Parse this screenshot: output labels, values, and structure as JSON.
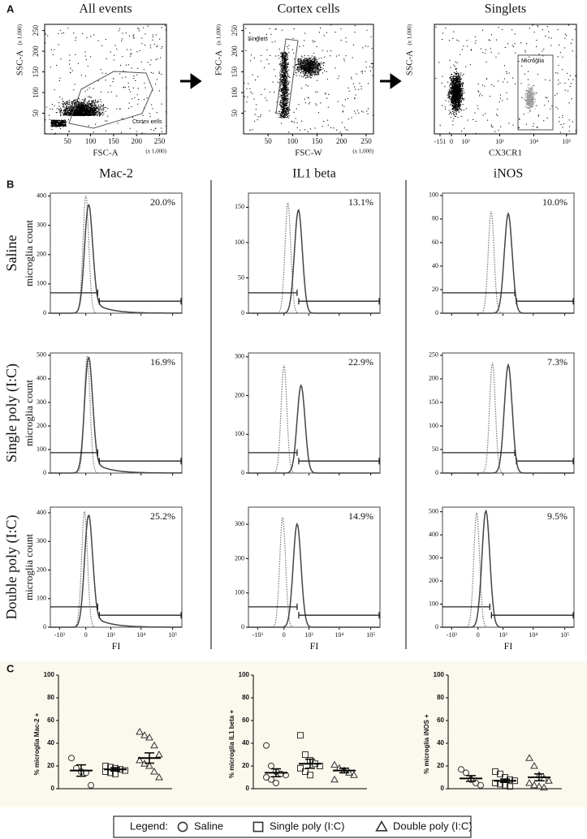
{
  "panel_labels": {
    "a": "A",
    "b": "B",
    "c": "C"
  },
  "gating": [
    {
      "title": "All events",
      "xlabel": "FSC-A",
      "ylabel": "SSC-A",
      "x_unit": "(x 1,000)",
      "y_unit": "(x 1,000)",
      "gate": "Cortex cells",
      "xlim": [
        0,
        265
      ],
      "ylim": [
        0,
        265
      ],
      "xticks": [
        50,
        100,
        150,
        200,
        250
      ],
      "yticks": [
        50,
        100,
        150,
        200,
        250
      ]
    },
    {
      "title": "Cortex cells",
      "xlabel": "FSC-W",
      "ylabel": "FSC-A",
      "x_unit": "(x 1,000)",
      "y_unit": "(x 1,000)",
      "gate": "Singlets",
      "xlim": [
        0,
        265
      ],
      "ylim": [
        0,
        265
      ],
      "xticks": [
        50,
        100,
        150,
        200,
        250
      ],
      "yticks": [
        50,
        100,
        150,
        200,
        250
      ]
    },
    {
      "title": "Singlets",
      "xlabel": "CX3CR1",
      "ylabel": "SSC-A",
      "y_unit": "(x 1,000)",
      "gate": "Microglia",
      "xticks": [
        "-151",
        "0",
        "10²",
        "10³",
        "10⁴",
        "10⁵"
      ]
    }
  ],
  "histograms": {
    "columns": [
      "Mac-2",
      "IL1 beta",
      "iNOS"
    ],
    "rows": [
      "Saline",
      "Single poly (I:C)",
      "Double poly (I:C)"
    ],
    "ylabel": "microglia count",
    "xlabel": "FI",
    "xticks": [
      "-10³",
      "0",
      "10³",
      "10⁴",
      "10⁵"
    ],
    "panels": [
      [
        {
          "percent": "20.0%",
          "ylim": [
            0,
            410
          ],
          "yticks": [
            0,
            100,
            200,
            300,
            400
          ]
        },
        {
          "percent": "13.1%",
          "ylim": [
            0,
            170
          ],
          "yticks": [
            0,
            50,
            100,
            150
          ]
        },
        {
          "percent": "10.0%",
          "ylim": [
            0,
            102
          ],
          "yticks": [
            0,
            20,
            40,
            60,
            80,
            100
          ]
        }
      ],
      [
        {
          "percent": "16.9%",
          "ylim": [
            0,
            510
          ],
          "yticks": [
            0,
            100,
            200,
            300,
            400,
            500
          ]
        },
        {
          "percent": "22.9%",
          "ylim": [
            0,
            310
          ],
          "yticks": [
            0,
            100,
            200,
            300
          ]
        },
        {
          "percent": "7.3%",
          "ylim": [
            0,
            255
          ],
          "yticks": [
            0,
            50,
            100,
            150,
            200,
            250
          ]
        }
      ],
      [
        {
          "percent": "25.2%",
          "ylim": [
            0,
            420
          ],
          "yticks": [
            0,
            100,
            200,
            300,
            400
          ]
        },
        {
          "percent": "14.9%",
          "ylim": [
            0,
            350
          ],
          "yticks": [
            0,
            100,
            200,
            300
          ]
        },
        {
          "percent": "9.5%",
          "ylim": [
            0,
            520
          ],
          "yticks": [
            0,
            100,
            200,
            300,
            400,
            500
          ]
        }
      ]
    ]
  },
  "dotplots": {
    "ylim": [
      0,
      100
    ],
    "yticks": [
      0,
      20,
      40,
      60,
      80,
      100
    ],
    "groups": [
      {
        "name": "Saline",
        "marker": "circle"
      },
      {
        "name": "Single poly (I:C)",
        "marker": "square"
      },
      {
        "name": "Double poly (I:C)",
        "marker": "triangle"
      }
    ],
    "panels": [
      {
        "ylabel": "% microglia Mac-2 +",
        "values": [
          [
            27,
            18,
            15,
            14,
            3
          ],
          [
            20,
            19,
            18,
            17,
            16,
            15,
            14,
            13
          ],
          [
            50,
            47,
            45,
            38,
            30,
            25,
            22,
            20,
            15,
            10
          ]
        ],
        "mean": [
          16,
          17,
          27
        ],
        "sem": [
          5,
          1.5,
          4.5
        ]
      },
      {
        "ylabel": "% microglia IL1 beta +",
        "values": [
          [
            38,
            20,
            15,
            13,
            12,
            10,
            8,
            5
          ],
          [
            47,
            30,
            25,
            22,
            20,
            18,
            15,
            12
          ],
          [
            21,
            18,
            16,
            14,
            12,
            8
          ]
        ],
        "mean": [
          14,
          22,
          16
        ],
        "sem": [
          3.5,
          4,
          2
        ]
      },
      {
        "ylabel": "% microglia iNOS +",
        "values": [
          [
            17,
            14,
            8,
            5,
            3
          ],
          [
            15,
            13,
            10,
            8,
            7,
            5,
            4,
            3,
            2
          ],
          [
            27,
            20,
            12,
            9,
            7,
            5,
            3,
            2,
            1
          ]
        ],
        "mean": [
          9,
          7,
          10
        ],
        "sem": [
          2.5,
          1.5,
          3
        ]
      }
    ]
  },
  "legend": {
    "title": "Legend:"
  }
}
